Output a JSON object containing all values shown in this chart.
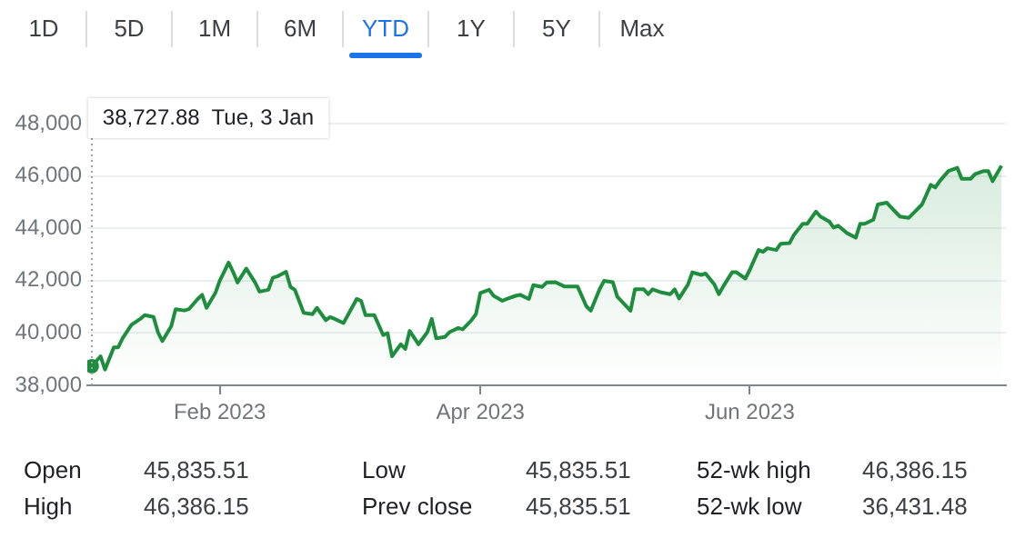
{
  "chart_data": [
    {
      "type": "other",
      "annotations": [
        "1D",
        "5D",
        "1M",
        "6M",
        "YTD",
        "1Y",
        "5Y",
        "Max"
      ]
    },
    {
      "type": "area",
      "grid": "y",
      "legend": false,
      "xlim": [
        "2023-01-02",
        "2023-07-29"
      ],
      "xticks": [
        {
          "value": "2023-02-01",
          "label": "Feb 2023"
        },
        {
          "value": "2023-04-01",
          "label": "Apr 2023"
        },
        {
          "value": "2023-06-01",
          "label": "Jun 2023"
        }
      ],
      "ylim": [
        38000,
        48000
      ],
      "yticks": [
        {
          "value": 38000,
          "label": "38,000"
        },
        {
          "value": 40000,
          "label": "40,000"
        },
        {
          "value": 42000,
          "label": "42,000"
        },
        {
          "value": 44000,
          "label": "44,000"
        },
        {
          "value": 46000,
          "label": "46,000"
        },
        {
          "value": 48000,
          "label": "48,000"
        }
      ],
      "x": [
        "2023-01-03",
        "2023-01-05",
        "2023-01-06",
        "2023-01-08",
        "2023-01-09",
        "2023-01-10",
        "2023-01-12",
        "2023-01-14",
        "2023-01-15",
        "2023-01-17",
        "2023-01-18",
        "2023-01-19",
        "2023-01-21",
        "2023-01-22",
        "2023-01-24",
        "2023-01-25",
        "2023-01-27",
        "2023-01-28",
        "2023-01-29",
        "2023-01-31",
        "2023-02-01",
        "2023-02-03",
        "2023-02-04",
        "2023-02-05",
        "2023-02-07",
        "2023-02-09",
        "2023-02-10",
        "2023-02-12",
        "2023-02-13",
        "2023-02-14",
        "2023-02-16",
        "2023-02-17",
        "2023-02-18",
        "2023-02-20",
        "2023-02-22",
        "2023-02-23",
        "2023-02-25",
        "2023-02-26",
        "2023-02-27",
        "2023-03-01",
        "2023-03-02",
        "2023-03-04",
        "2023-03-05",
        "2023-03-06",
        "2023-03-08",
        "2023-03-10",
        "2023-03-11",
        "2023-03-12",
        "2023-03-14",
        "2023-03-15",
        "2023-03-16",
        "2023-03-18",
        "2023-03-20",
        "2023-03-21",
        "2023-03-22",
        "2023-03-24",
        "2023-03-25",
        "2023-03-27",
        "2023-03-28",
        "2023-03-30",
        "2023-03-31",
        "2023-04-01",
        "2023-04-03",
        "2023-04-04",
        "2023-04-06",
        "2023-04-07",
        "2023-04-09",
        "2023-04-10",
        "2023-04-12",
        "2023-04-13",
        "2023-04-15",
        "2023-04-16",
        "2023-04-18",
        "2023-04-20",
        "2023-04-22",
        "2023-04-23",
        "2023-04-25",
        "2023-04-26",
        "2023-04-28",
        "2023-04-29",
        "2023-05-01",
        "2023-05-02",
        "2023-05-05",
        "2023-05-06",
        "2023-05-08",
        "2023-05-09",
        "2023-05-10",
        "2023-05-12",
        "2023-05-14",
        "2023-05-15",
        "2023-05-16",
        "2023-05-18",
        "2023-05-19",
        "2023-05-21",
        "2023-05-22",
        "2023-05-24",
        "2023-05-25",
        "2023-05-26",
        "2023-05-28",
        "2023-05-29",
        "2023-05-31",
        "2023-06-01",
        "2023-06-03",
        "2023-06-04",
        "2023-06-05",
        "2023-06-07",
        "2023-06-08",
        "2023-06-10",
        "2023-06-11",
        "2023-06-13",
        "2023-06-14",
        "2023-06-16",
        "2023-06-17",
        "2023-06-19",
        "2023-06-20",
        "2023-06-21",
        "2023-06-23",
        "2023-06-25",
        "2023-06-26",
        "2023-06-27",
        "2023-06-29",
        "2023-06-30",
        "2023-07-02",
        "2023-07-03",
        "2023-07-05",
        "2023-07-07",
        "2023-07-08",
        "2023-07-10",
        "2023-07-12",
        "2023-07-13",
        "2023-07-14",
        "2023-07-16",
        "2023-07-18",
        "2023-07-19",
        "2023-07-21",
        "2023-07-22",
        "2023-07-24",
        "2023-07-25",
        "2023-07-26",
        "2023-07-28"
      ],
      "series": [
        {
          "color": "#1e8e3e",
          "values": [
            38730,
            39110,
            38600,
            39450,
            39450,
            39800,
            40310,
            40540,
            40680,
            40610,
            40030,
            39690,
            40260,
            40910,
            40860,
            40910,
            41300,
            41460,
            40960,
            41530,
            42000,
            42690,
            42340,
            41930,
            42460,
            41930,
            41580,
            41650,
            42110,
            42160,
            42340,
            41760,
            41650,
            40770,
            40720,
            40960,
            40490,
            40610,
            40540,
            40380,
            40680,
            41300,
            41230,
            40680,
            40680,
            39920,
            39990,
            39110,
            39570,
            39390,
            40080,
            39570,
            40030,
            40540,
            39800,
            39850,
            40030,
            40190,
            40140,
            40490,
            40720,
            41530,
            41650,
            41420,
            41230,
            41300,
            41420,
            41460,
            41300,
            41830,
            41760,
            41930,
            41940,
            41780,
            41780,
            41780,
            41020,
            40850,
            41670,
            41990,
            41940,
            41390,
            40850,
            41670,
            41670,
            41480,
            41670,
            41550,
            41480,
            41670,
            41320,
            41850,
            42320,
            42220,
            42270,
            41850,
            41480,
            41780,
            42320,
            42320,
            42080,
            42410,
            43170,
            43100,
            43240,
            43170,
            43410,
            43430,
            43750,
            44170,
            44170,
            44640,
            44450,
            44260,
            44030,
            44100,
            43820,
            43640,
            44170,
            44170,
            44330,
            44910,
            44980,
            44800,
            44450,
            44400,
            44570,
            44910,
            45660,
            45560,
            45800,
            46190,
            46310,
            45890,
            45890,
            46070,
            46190,
            46190,
            45800,
            46390
          ]
        }
      ],
      "ref_lines": [
        {
          "axis": "x",
          "value": "2023-01-03",
          "color": "#9aa0a6",
          "line_style": "dotted"
        }
      ],
      "annotations": [
        "38,727.88  Tue, 3 Jan"
      ]
    },
    {
      "type": "other",
      "annotations": [
        "Open",
        "45,835.51",
        "High",
        "46,386.15",
        "Low",
        "45,835.51",
        "Prev close",
        "45,835.51",
        "52-wk high",
        "46,386.15",
        "52-wk low",
        "36,431.48"
      ]
    }
  ]
}
